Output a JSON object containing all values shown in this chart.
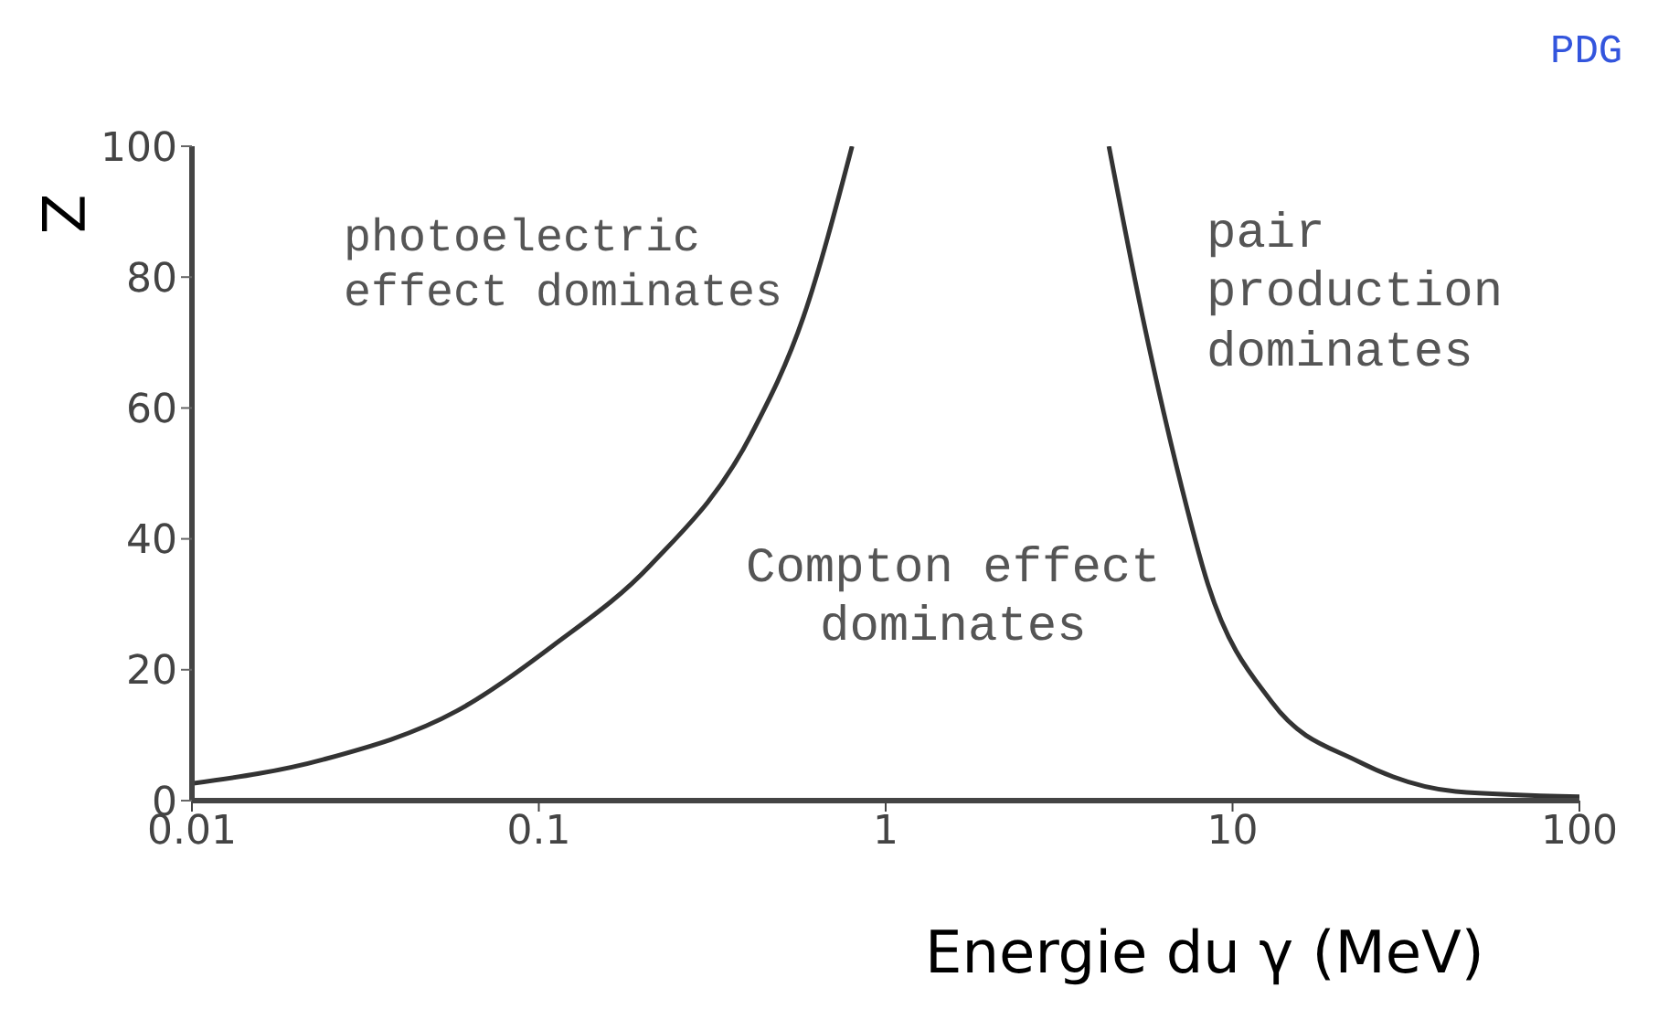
{
  "chart_data": {
    "type": "line",
    "xlabel": "Energie du γ (MeV)",
    "ylabel": "Z",
    "log": "x",
    "xlim": [
      0.01,
      100
    ],
    "ylim": [
      0,
      100
    ],
    "xticks": [
      {
        "value": 0.01,
        "label": "0.01"
      },
      {
        "value": 0.1,
        "label": "0.1"
      },
      1,
      10,
      100
    ],
    "yticks": [
      0,
      20,
      40,
      60,
      80,
      100
    ],
    "marker": "none",
    "line_style": "solid",
    "series": [
      {
        "color": "#333333",
        "x": [
          0.01,
          0.024,
          0.058,
          0.11,
          0.21,
          0.41,
          0.58,
          0.8
        ],
        "values": [
          2.6,
          6.3,
          13.7,
          23.7,
          36,
          56,
          74,
          100
        ]
      },
      {
        "color": "#333333",
        "x": [
          4.4,
          5.5,
          6.9,
          8.5,
          13,
          23,
          44,
          100
        ],
        "values": [
          100,
          74,
          51,
          33,
          15,
          6,
          1.4,
          0.6
        ]
      }
    ],
    "annotations": [
      "photoelectric\neffect dominates",
      "Compton effect\ndominates",
      "pair\nproduction\ndominates",
      "PDG"
    ]
  }
}
